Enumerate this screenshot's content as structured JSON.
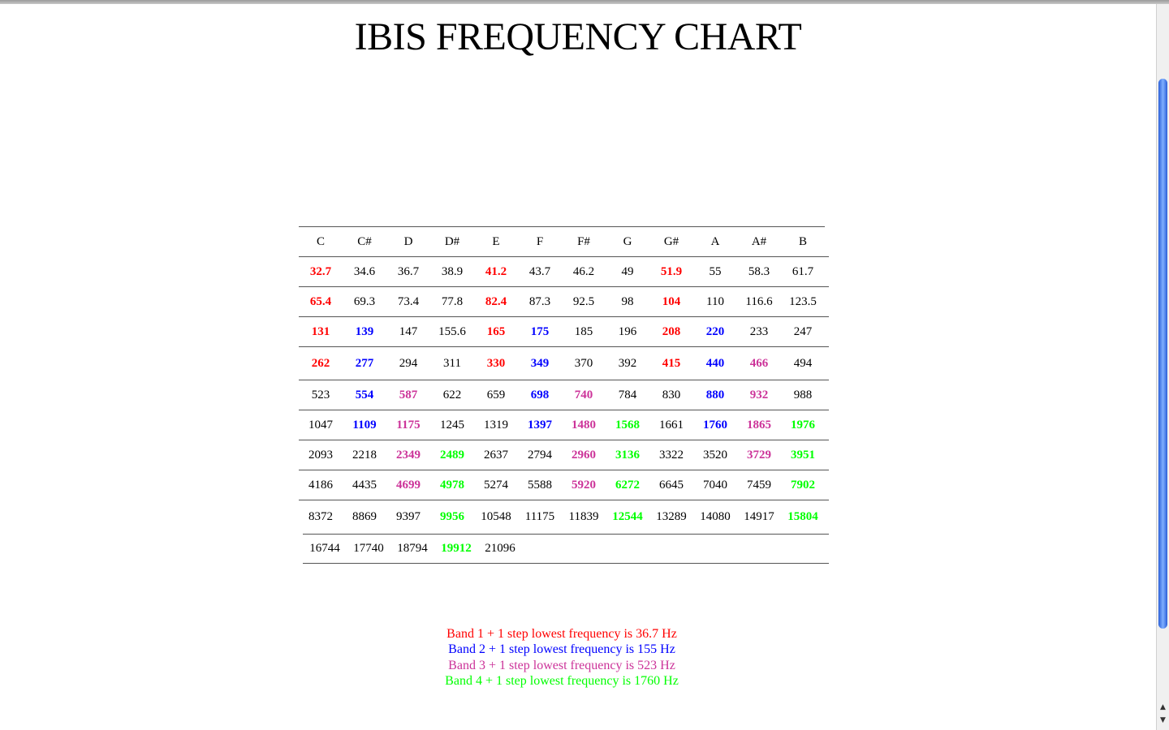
{
  "title": "IBIS FREQUENCY CHART",
  "band_colors": {
    "0": "#000000",
    "1": "#ff0000",
    "2": "#0000ff",
    "3": "#cc3399",
    "4": "#00ff00"
  },
  "table": {
    "headers": [
      "C",
      "C#",
      "D",
      "D#",
      "E",
      "F",
      "F#",
      "G",
      "G#",
      "A",
      "A#",
      "B"
    ],
    "rows": [
      {
        "cells": [
          {
            "v": "32.7",
            "band": 1
          },
          {
            "v": "34.6",
            "band": 0
          },
          {
            "v": "36.7",
            "band": 0
          },
          {
            "v": "38.9",
            "band": 0
          },
          {
            "v": "41.2",
            "band": 1
          },
          {
            "v": "43.7",
            "band": 0
          },
          {
            "v": "46.2",
            "band": 0
          },
          {
            "v": "49",
            "band": 0
          },
          {
            "v": "51.9",
            "band": 1
          },
          {
            "v": "55",
            "band": 0
          },
          {
            "v": "58.3",
            "band": 0
          },
          {
            "v": "61.7",
            "band": 0
          }
        ]
      },
      {
        "cells": [
          {
            "v": "65.4",
            "band": 1
          },
          {
            "v": "69.3",
            "band": 0
          },
          {
            "v": "73.4",
            "band": 0
          },
          {
            "v": "77.8",
            "band": 0
          },
          {
            "v": "82.4",
            "band": 1
          },
          {
            "v": "87.3",
            "band": 0
          },
          {
            "v": "92.5",
            "band": 0
          },
          {
            "v": "98",
            "band": 0
          },
          {
            "v": "104",
            "band": 1
          },
          {
            "v": "110",
            "band": 0
          },
          {
            "v": "116.6",
            "band": 0
          },
          {
            "v": "123.5",
            "band": 0
          }
        ]
      },
      {
        "cells": [
          {
            "v": "131",
            "band": 1
          },
          {
            "v": "139",
            "band": 2
          },
          {
            "v": "147",
            "band": 0
          },
          {
            "v": "155.6",
            "band": 0
          },
          {
            "v": "165",
            "band": 1
          },
          {
            "v": "175",
            "band": 2
          },
          {
            "v": "185",
            "band": 0
          },
          {
            "v": "196",
            "band": 0
          },
          {
            "v": "208",
            "band": 1
          },
          {
            "v": "220",
            "band": 2
          },
          {
            "v": "233",
            "band": 0
          },
          {
            "v": "247",
            "band": 0
          }
        ]
      },
      {
        "cells": [
          {
            "v": "262",
            "band": 1
          },
          {
            "v": "277",
            "band": 2
          },
          {
            "v": "294",
            "band": 0
          },
          {
            "v": "311",
            "band": 0
          },
          {
            "v": "330",
            "band": 1
          },
          {
            "v": "349",
            "band": 2
          },
          {
            "v": "370",
            "band": 0
          },
          {
            "v": "392",
            "band": 0
          },
          {
            "v": "415",
            "band": 1
          },
          {
            "v": "440",
            "band": 2
          },
          {
            "v": "466",
            "band": 3
          },
          {
            "v": "494",
            "band": 0
          }
        ]
      },
      {
        "cells": [
          {
            "v": "523",
            "band": 0
          },
          {
            "v": "554",
            "band": 2
          },
          {
            "v": "587",
            "band": 3
          },
          {
            "v": "622",
            "band": 0
          },
          {
            "v": "659",
            "band": 0
          },
          {
            "v": "698",
            "band": 2
          },
          {
            "v": "740",
            "band": 3
          },
          {
            "v": "784",
            "band": 0
          },
          {
            "v": "830",
            "band": 0
          },
          {
            "v": "880",
            "band": 2
          },
          {
            "v": "932",
            "band": 3
          },
          {
            "v": "988",
            "band": 0
          }
        ]
      },
      {
        "cells": [
          {
            "v": "1047",
            "band": 0
          },
          {
            "v": "1109",
            "band": 2
          },
          {
            "v": "1175",
            "band": 3
          },
          {
            "v": "1245",
            "band": 0
          },
          {
            "v": "1319",
            "band": 0
          },
          {
            "v": "1397",
            "band": 2
          },
          {
            "v": "1480",
            "band": 3
          },
          {
            "v": "1568",
            "band": 4
          },
          {
            "v": "1661",
            "band": 0
          },
          {
            "v": "1760",
            "band": 2
          },
          {
            "v": "1865",
            "band": 3
          },
          {
            "v": "1976",
            "band": 4
          }
        ]
      },
      {
        "cells": [
          {
            "v": "2093",
            "band": 0
          },
          {
            "v": "2218",
            "band": 0
          },
          {
            "v": "2349",
            "band": 3
          },
          {
            "v": "2489",
            "band": 4
          },
          {
            "v": "2637",
            "band": 0
          },
          {
            "v": "2794",
            "band": 0
          },
          {
            "v": "2960",
            "band": 3
          },
          {
            "v": "3136",
            "band": 4
          },
          {
            "v": "3322",
            "band": 0
          },
          {
            "v": "3520",
            "band": 0
          },
          {
            "v": "3729",
            "band": 3
          },
          {
            "v": "3951",
            "band": 4
          }
        ]
      },
      {
        "cells": [
          {
            "v": "4186",
            "band": 0
          },
          {
            "v": "4435",
            "band": 0
          },
          {
            "v": "4699",
            "band": 3
          },
          {
            "v": "4978",
            "band": 4
          },
          {
            "v": "5274",
            "band": 0
          },
          {
            "v": "5588",
            "band": 0
          },
          {
            "v": "5920",
            "band": 3
          },
          {
            "v": "6272",
            "band": 4
          },
          {
            "v": "6645",
            "band": 0
          },
          {
            "v": "7040",
            "band": 0
          },
          {
            "v": "7459",
            "band": 0
          },
          {
            "v": "7902",
            "band": 4
          }
        ]
      },
      {
        "cells": [
          {
            "v": "8372",
            "band": 0
          },
          {
            "v": "8869",
            "band": 0
          },
          {
            "v": "9397",
            "band": 0
          },
          {
            "v": "9956",
            "band": 4
          },
          {
            "v": "10548",
            "band": 0
          },
          {
            "v": "11175",
            "band": 0
          },
          {
            "v": "11839",
            "band": 0
          },
          {
            "v": "12544",
            "band": 4
          },
          {
            "v": "13289",
            "band": 0
          },
          {
            "v": "14080",
            "band": 0
          },
          {
            "v": "14917",
            "band": 0
          },
          {
            "v": "15804",
            "band": 4
          }
        ]
      },
      {
        "cells": [
          {
            "v": "16744",
            "band": 0
          },
          {
            "v": "17740",
            "band": 0
          },
          {
            "v": "18794",
            "band": 0
          },
          {
            "v": "19912",
            "band": 4
          },
          {
            "v": "21096",
            "band": 0
          }
        ]
      }
    ]
  },
  "legend": [
    {
      "text": "Band 1 + 1 step lowest frequency is 36.7 Hz",
      "band": 1
    },
    {
      "text": "Band 2 + 1 step lowest frequency is 155 Hz",
      "band": 2
    },
    {
      "text": "Band 3 + 1 step lowest frequency is 523 Hz",
      "band": 3
    },
    {
      "text": "Band 4 + 1 step lowest frequency is 1760 Hz",
      "band": 4
    }
  ]
}
